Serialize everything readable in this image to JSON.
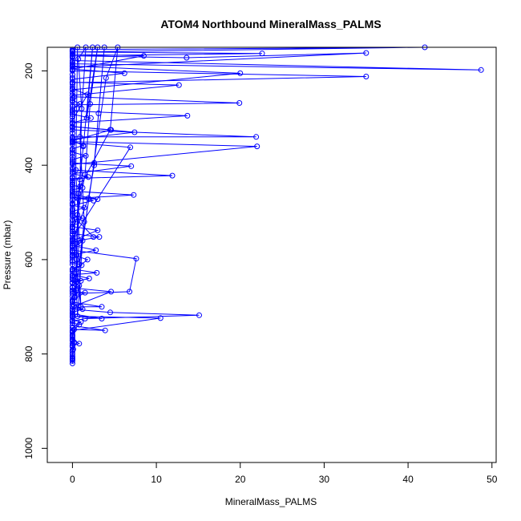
{
  "chart_data": {
    "type": "scatter",
    "title": "ATOM4 Northbound MineralMass_PALMS",
    "xlabel": "MineralMass_PALMS",
    "ylabel": "Pressure (mbar)",
    "xlim": [
      -3,
      50.5
    ],
    "ylim": [
      1030,
      150
    ],
    "y_reversed": true,
    "x_ticks": [
      0,
      10,
      20,
      30,
      40,
      50
    ],
    "x_tick_labels": [
      "0",
      "10",
      "20",
      "30",
      "40",
      "50"
    ],
    "y_ticks": [
      200,
      400,
      600,
      800,
      1000
    ],
    "y_tick_labels": [
      "200",
      "400",
      "600",
      "800",
      "1000"
    ],
    "grid": false,
    "legend": "none",
    "line_color": "#0000ff",
    "connected": true,
    "series": [
      {
        "points": [
          [
            0.0,
            820
          ],
          [
            0.0,
            812
          ],
          [
            0.0,
            805
          ],
          [
            0.1,
            790
          ],
          [
            0.0,
            783
          ],
          [
            0.8,
            778
          ],
          [
            0.0,
            770
          ],
          [
            0.0,
            760
          ],
          [
            0.2,
            748
          ],
          [
            3.9,
            750
          ],
          [
            0.0,
            740
          ],
          [
            0.0,
            730
          ],
          [
            1.5,
            725
          ],
          [
            15.1,
            718
          ],
          [
            4.5,
            712
          ],
          [
            0.0,
            705
          ],
          [
            1.0,
            700
          ],
          [
            3.5,
            700
          ],
          [
            0.0,
            690
          ],
          [
            0.2,
            680
          ],
          [
            0.0,
            672
          ],
          [
            6.8,
            668
          ],
          [
            7.6,
            598
          ],
          [
            0.0,
            580
          ],
          [
            0.0,
            562
          ],
          [
            3.2,
            552
          ],
          [
            0.0,
            545
          ],
          [
            0.0,
            532
          ],
          [
            0.4,
            520
          ],
          [
            0.0,
            508
          ],
          [
            0.0,
            495
          ],
          [
            0.0,
            480
          ],
          [
            0.6,
            470
          ],
          [
            7.3,
            463
          ],
          [
            0.0,
            455
          ],
          [
            0.0,
            440
          ],
          [
            0.0,
            428
          ],
          [
            11.9,
            422
          ],
          [
            0.0,
            410
          ],
          [
            0.0,
            398
          ],
          [
            22.0,
            360
          ],
          [
            0.0,
            350
          ],
          [
            0.0,
            340
          ],
          [
            21.9,
            340
          ],
          [
            0.0,
            325
          ],
          [
            0.0,
            310
          ],
          [
            13.7,
            295
          ],
          [
            0.0,
            285
          ],
          [
            0.0,
            272
          ],
          [
            19.9,
            268
          ],
          [
            0.2,
            255
          ],
          [
            0.0,
            240
          ],
          [
            20.0,
            205
          ],
          [
            0.0,
            190
          ],
          [
            0.0,
            178
          ],
          [
            48.7,
            198
          ],
          [
            0.0,
            185
          ],
          [
            0.0,
            170
          ],
          [
            0.0,
            158
          ]
        ]
      },
      {
        "points": [
          [
            0.0,
            815
          ],
          [
            0.0,
            800
          ],
          [
            0.2,
            775
          ],
          [
            0.0,
            765
          ],
          [
            0.0,
            750
          ],
          [
            10.5,
            724
          ],
          [
            0.0,
            720
          ],
          [
            3.5,
            725
          ],
          [
            0.0,
            715
          ],
          [
            0.0,
            700
          ],
          [
            4.6,
            668
          ],
          [
            0.0,
            660
          ],
          [
            0.0,
            650
          ],
          [
            1.0,
            645
          ],
          [
            0.0,
            638
          ],
          [
            0.0,
            625
          ],
          [
            1.8,
            600
          ],
          [
            0.0,
            590
          ],
          [
            2.8,
            580
          ],
          [
            0.0,
            570
          ],
          [
            0.0,
            555
          ],
          [
            6.9,
            362
          ],
          [
            0.0,
            352
          ],
          [
            0.0,
            345
          ],
          [
            7.4,
            330
          ],
          [
            0.0,
            318
          ],
          [
            0.0,
            305
          ],
          [
            1.8,
            250
          ],
          [
            0.0,
            238
          ],
          [
            0.0,
            225
          ],
          [
            35.0,
            212
          ],
          [
            0.0,
            200
          ],
          [
            0.0,
            192
          ],
          [
            35.0,
            162
          ],
          [
            13.6,
            172
          ],
          [
            0.0,
            168
          ],
          [
            22.6,
            163
          ],
          [
            0.0,
            160
          ],
          [
            42.0,
            150
          ],
          [
            0.0,
            155
          ]
        ]
      },
      {
        "points": [
          [
            0.0,
            810
          ],
          [
            0.0,
            795
          ],
          [
            0.0,
            785
          ],
          [
            0.0,
            778
          ],
          [
            0.0,
            768
          ],
          [
            0.0,
            755
          ],
          [
            0.0,
            745
          ],
          [
            1.0,
            732
          ],
          [
            0.0,
            728
          ],
          [
            0.0,
            718
          ],
          [
            0.0,
            708
          ],
          [
            0.2,
            698
          ],
          [
            0.0,
            688
          ],
          [
            0.0,
            678
          ],
          [
            0.6,
            670
          ],
          [
            0.0,
            665
          ],
          [
            0.8,
            655
          ],
          [
            0.0,
            648
          ],
          [
            2.0,
            640
          ],
          [
            0.0,
            632
          ],
          [
            2.9,
            628
          ],
          [
            0.0,
            620
          ],
          [
            1.1,
            612
          ],
          [
            0.0,
            605
          ],
          [
            0.0,
            596
          ],
          [
            0.5,
            590
          ],
          [
            0.0,
            585
          ],
          [
            0.0,
            575
          ],
          [
            0.9,
            565
          ],
          [
            0.0,
            560
          ],
          [
            3.0,
            538
          ],
          [
            0.0,
            530
          ],
          [
            0.0,
            520
          ],
          [
            1.2,
            512
          ],
          [
            0.0,
            505
          ],
          [
            0.0,
            498
          ],
          [
            1.4,
            490
          ],
          [
            0.0,
            485
          ],
          [
            2.5,
            475
          ],
          [
            0.0,
            468
          ],
          [
            3.0,
            472
          ],
          [
            0.0,
            462
          ],
          [
            0.0,
            452
          ],
          [
            1.2,
            448
          ],
          [
            0.0,
            442
          ],
          [
            0.0,
            432
          ],
          [
            1.9,
            425
          ],
          [
            0.0,
            418
          ],
          [
            7.0,
            402
          ],
          [
            0.0,
            395
          ],
          [
            0.0,
            388
          ],
          [
            1.6,
            380
          ],
          [
            0.0,
            372
          ],
          [
            0.0,
            365
          ],
          [
            1.3,
            358
          ],
          [
            0.0,
            348
          ],
          [
            4.6,
            325
          ],
          [
            0.0,
            318
          ],
          [
            0.0,
            310
          ],
          [
            2.2,
            300
          ],
          [
            0.0,
            292
          ],
          [
            0.0,
            282
          ],
          [
            0.9,
            270
          ],
          [
            0.0,
            262
          ],
          [
            0.0,
            252
          ],
          [
            12.7,
            230
          ],
          [
            0.0,
            224
          ],
          [
            0.0,
            218
          ],
          [
            6.2,
            205
          ],
          [
            0.0,
            196
          ],
          [
            8.5,
            168
          ],
          [
            0.0,
            165
          ],
          [
            0.0,
            160
          ]
        ]
      },
      {
        "points": [
          [
            0.0,
            808
          ],
          [
            0.0,
            792
          ],
          [
            0.0,
            782
          ],
          [
            0.0,
            772
          ],
          [
            0.0,
            762
          ],
          [
            0.0,
            752
          ],
          [
            0.8,
            738
          ],
          [
            0.0,
            734
          ],
          [
            0.0,
            722
          ],
          [
            0.0,
            712
          ],
          [
            1.2,
            705
          ],
          [
            0.0,
            695
          ],
          [
            0.0,
            685
          ],
          [
            1.5,
            670
          ],
          [
            0.0,
            668
          ],
          [
            0.0,
            658
          ],
          [
            0.0,
            642
          ],
          [
            0.0,
            635
          ],
          [
            0.0,
            622
          ],
          [
            0.0,
            610
          ],
          [
            0.0,
            602
          ],
          [
            0.0,
            592
          ],
          [
            0.0,
            582
          ],
          [
            0.0,
            572
          ],
          [
            0.0,
            566
          ],
          [
            0.0,
            558
          ],
          [
            0.0,
            548
          ],
          [
            0.0,
            540
          ],
          [
            0.0,
            535
          ],
          [
            0.0,
            526
          ],
          [
            0.0,
            515
          ],
          [
            0.0,
            502
          ],
          [
            0.0,
            492
          ],
          [
            0.0,
            482
          ],
          [
            0.0,
            474
          ],
          [
            0.0,
            465
          ],
          [
            0.0,
            458
          ],
          [
            0.0,
            446
          ],
          [
            0.0,
            436
          ],
          [
            0.0,
            425
          ],
          [
            0.0,
            414
          ],
          [
            0.0,
            406
          ],
          [
            0.0,
            392
          ],
          [
            0.0,
            382
          ],
          [
            0.0,
            376
          ],
          [
            0.0,
            368
          ],
          [
            0.0,
            355
          ],
          [
            0.0,
            342
          ],
          [
            0.0,
            332
          ],
          [
            0.0,
            320
          ],
          [
            0.0,
            312
          ],
          [
            0.0,
            298
          ],
          [
            0.0,
            288
          ],
          [
            0.0,
            276
          ],
          [
            0.0,
            265
          ],
          [
            0.0,
            258
          ],
          [
            0.0,
            246
          ],
          [
            0.0,
            234
          ],
          [
            0.0,
            228
          ],
          [
            0.0,
            214
          ],
          [
            0.0,
            208
          ],
          [
            0.0,
            198
          ],
          [
            0.0,
            188
          ],
          [
            0.0,
            182
          ],
          [
            0.0,
            172
          ],
          [
            0.0,
            163
          ],
          [
            0.0,
            157
          ]
        ]
      },
      {
        "points": [
          [
            0.6,
            150
          ],
          [
            0.5,
            280
          ],
          [
            0.4,
            410
          ],
          [
            0.8,
            560
          ],
          [
            0.3,
            680
          ],
          [
            0.9,
            430
          ],
          [
            1.1,
            280
          ],
          [
            0.7,
            175
          ],
          [
            1.6,
            150
          ],
          [
            0.9,
            340
          ],
          [
            1.4,
            520
          ],
          [
            0.8,
            610
          ],
          [
            1.0,
            700
          ],
          [
            0.5,
            620
          ],
          [
            0.7,
            460
          ],
          [
            1.3,
            360
          ],
          [
            2.4,
            150
          ],
          [
            1.7,
            300
          ],
          [
            3.0,
            150
          ],
          [
            2.1,
            270
          ],
          [
            1.5,
            420
          ],
          [
            0.6,
            505
          ],
          [
            0.4,
            640
          ],
          [
            0.6,
            720
          ],
          [
            1.2,
            560
          ],
          [
            2.6,
            395
          ],
          [
            3.8,
            150
          ],
          [
            3.1,
            290
          ],
          [
            2.6,
            400
          ],
          [
            1.9,
            470
          ],
          [
            0.3,
            545
          ],
          [
            0.5,
            600
          ],
          [
            0.4,
            665
          ],
          [
            4.0,
            215
          ],
          [
            5.4,
            150
          ],
          [
            4.5,
            325
          ],
          [
            0.9,
            445
          ],
          [
            0.5,
            515
          ],
          [
            2.5,
            552
          ]
        ]
      }
    ]
  }
}
